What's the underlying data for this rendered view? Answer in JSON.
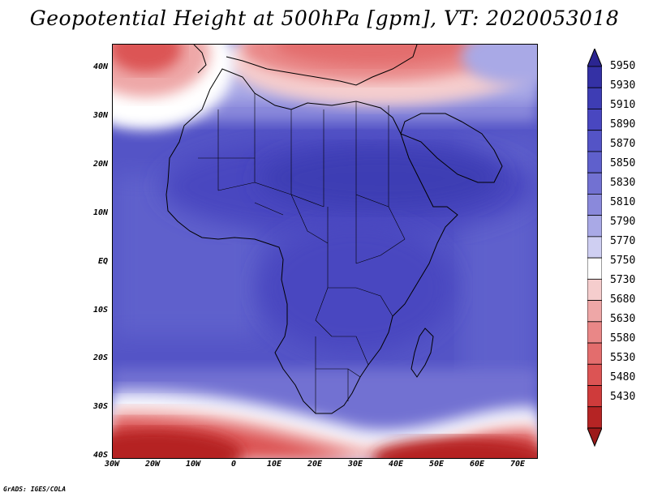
{
  "title": "Geopotential Height at 500hPa [gpm], VT: 2020053018",
  "footer": "GrADS: IGES/COLA",
  "map": {
    "variable": "Geopotential Height at 500hPa",
    "units": "gpm",
    "valid_time": "2020053018",
    "region": "Africa",
    "lon_range": [
      -30,
      75
    ],
    "lat_range": [
      -40,
      45
    ],
    "lat_labels": [
      "40N",
      "30N",
      "20N",
      "10N",
      "EQ",
      "10S",
      "20S",
      "30S",
      "40S"
    ],
    "lon_labels": [
      "30W",
      "20W",
      "10W",
      "0",
      "10E",
      "20E",
      "30E",
      "40E",
      "50E",
      "60E",
      "70E"
    ],
    "features": {
      "subtropical_high": "broad 5880-5910 gpm ridge over Sahara and Arabia",
      "equatorial_zone": "5860-5880 gpm over central Africa",
      "southern_trough": "low heights 5430-5530 gpm along 40S",
      "mediterranean_trough": "5680-5750 gpm over Mediterranean"
    }
  },
  "colorbar": {
    "levels": [
      "5950",
      "5930",
      "5910",
      "5890",
      "5870",
      "5850",
      "5830",
      "5810",
      "5790",
      "5770",
      "5750",
      "5730",
      "5680",
      "5630",
      "5580",
      "5530",
      "5480",
      "5430"
    ],
    "colors": [
      "#2b2591",
      "#3431a5",
      "#3e3db4",
      "#4947c0",
      "#5454c6",
      "#5f60cc",
      "#7271d2",
      "#8a89db",
      "#a9a9e6",
      "#cfcff2",
      "#ffffff",
      "#f5cdcd",
      "#eea7a7",
      "#e98787",
      "#e36d6d",
      "#dc5454",
      "#cf3b3b",
      "#b52424",
      "#9c1a1a"
    ]
  }
}
